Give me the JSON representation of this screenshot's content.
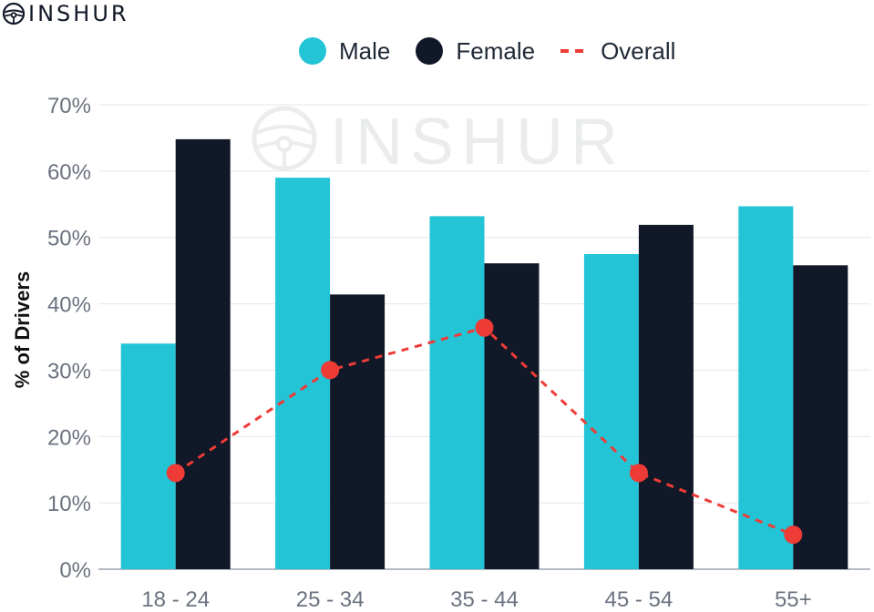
{
  "brand": {
    "name": "INSHUR",
    "icon": "steering-wheel-icon"
  },
  "watermark": {
    "text": "INSHUR",
    "icon": "steering-wheel-icon"
  },
  "colors": {
    "male": "#22c4d6",
    "female": "#111827",
    "overall": "#ef3b36",
    "grid": "#e5e7eb",
    "axis_text": "#6b7280"
  },
  "chart_data": {
    "type": "bar",
    "title": "",
    "xlabel": "",
    "ylabel": "% of Drivers",
    "categories": [
      "18 - 24",
      "25 - 34",
      "35 - 44",
      "45 - 54",
      "55+"
    ],
    "ylim": [
      0,
      70
    ],
    "yticks": [
      "0%",
      "10%",
      "20%",
      "30%",
      "40%",
      "50%",
      "60%",
      "70%"
    ],
    "grid": true,
    "legend_position": "top-center",
    "series": [
      {
        "name": "Male",
        "kind": "bar",
        "values": [
          34,
          59,
          53.2,
          47.5,
          54.7
        ]
      },
      {
        "name": "Female",
        "kind": "bar",
        "values": [
          64.8,
          41.4,
          46.1,
          51.9,
          45.8
        ]
      },
      {
        "name": "Overall",
        "kind": "line",
        "style": "dashed",
        "values": [
          14.5,
          30,
          36.4,
          14.5,
          5.2
        ]
      }
    ]
  }
}
